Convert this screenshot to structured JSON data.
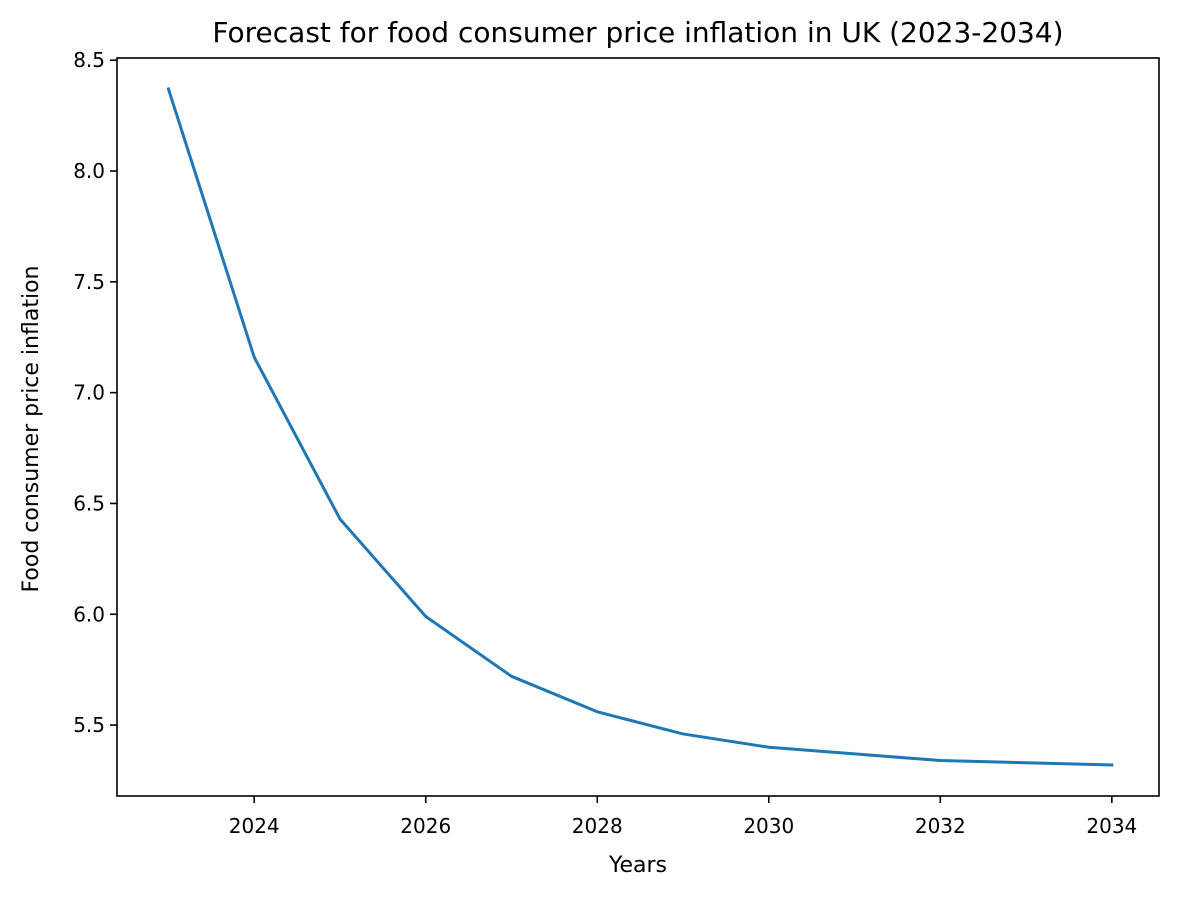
{
  "chart_data": {
    "type": "line",
    "title": "Forecast for food consumer price inflation in UK (2023-2034)",
    "xlabel": "Years",
    "ylabel": "Food consumer price inflation",
    "xlim": [
      2022.4,
      2034.55
    ],
    "ylim": [
      5.18,
      8.51
    ],
    "x_ticks": [
      2024,
      2026,
      2028,
      2030,
      2032,
      2034
    ],
    "y_ticks": [
      5.5,
      6.0,
      6.5,
      7.0,
      7.5,
      8.0,
      8.5
    ],
    "grid": false,
    "series": [
      {
        "color": "#1f77b4",
        "x": [
          2023,
          2024,
          2025,
          2026,
          2027,
          2028,
          2029,
          2030,
          2031,
          2032,
          2033,
          2034
        ],
        "y": [
          8.37,
          7.16,
          6.43,
          5.99,
          5.72,
          5.56,
          5.46,
          5.4,
          5.37,
          5.34,
          5.33,
          5.32
        ]
      }
    ]
  }
}
